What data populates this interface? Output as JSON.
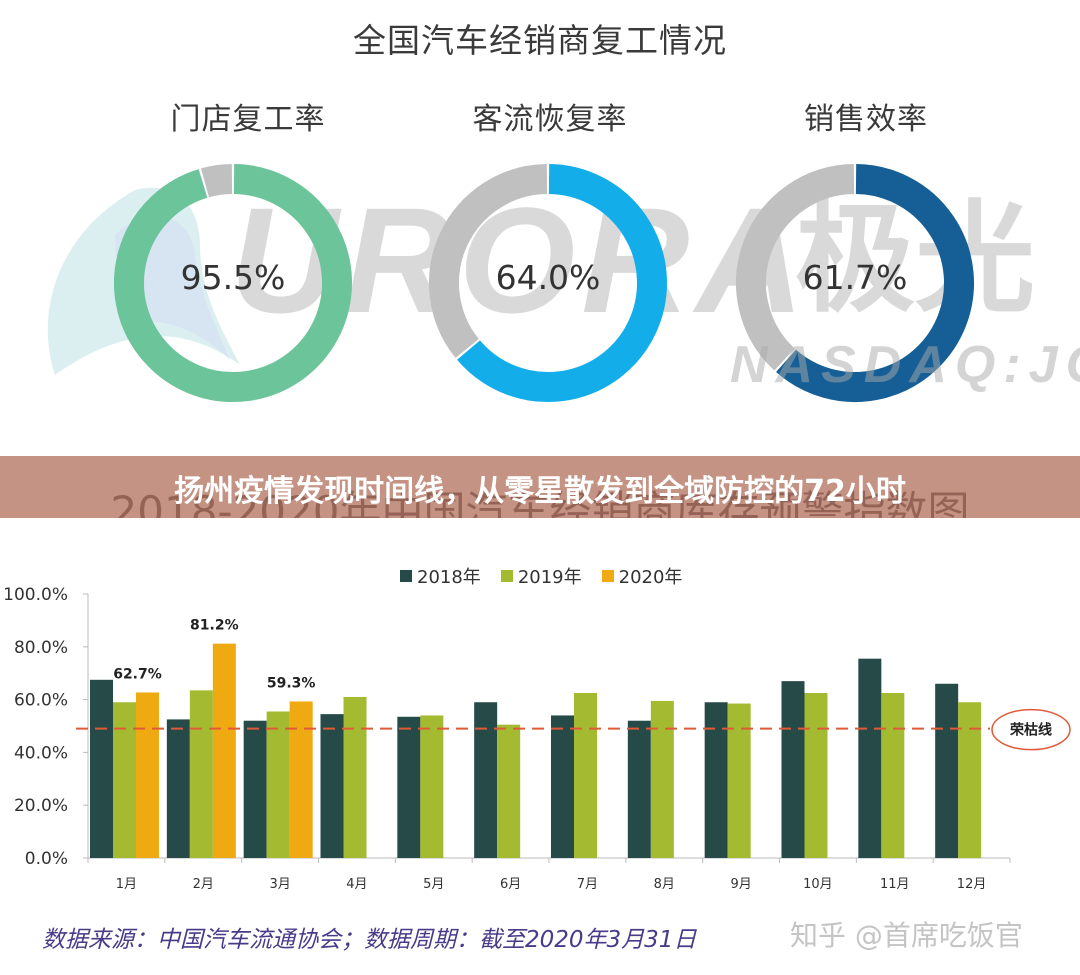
{
  "header": {
    "title": "全国汽车经销商复工情况"
  },
  "donuts": [
    {
      "title": "门店复工率",
      "value_label": "95.5%",
      "value": 95.5,
      "color": "#6cc49a",
      "rest_color": "#c0c0c0"
    },
    {
      "title": "客流恢复率",
      "value_label": "64.0%",
      "value": 64.0,
      "color": "#13aeea",
      "rest_color": "#c0c0c0"
    },
    {
      "title": "销售效率",
      "value_label": "61.7%",
      "value": 61.7,
      "color": "#155f96",
      "rest_color": "#c0c0c0"
    }
  ],
  "watermark": {
    "brand_text": "URORA",
    "brand_cn": "极光",
    "ticker": "NASDAQ:JG"
  },
  "banner": {
    "headline": "扬州疫情发现时间线，从零星散发到全域防控的72小时",
    "obscured_chart_title": "2018-2020年中国汽车经销商库存预警指数图"
  },
  "chart_data": {
    "type": "bar",
    "title": "2018-2020年中国汽车经销商库存预警指数图",
    "xlabel": "",
    "ylabel": "",
    "categories": [
      "1月",
      "2月",
      "3月",
      "4月",
      "5月",
      "6月",
      "7月",
      "8月",
      "9月",
      "10月",
      "11月",
      "12月"
    ],
    "series": [
      {
        "name": "2018年",
        "color": "#264a48",
        "values": [
          67.5,
          52.5,
          52.0,
          54.5,
          53.5,
          59.0,
          54.0,
          52.0,
          59.0,
          67.0,
          75.5,
          66.0
        ]
      },
      {
        "name": "2019年",
        "color": "#a3ba31",
        "values": [
          59.0,
          63.5,
          55.5,
          61.0,
          54.0,
          50.5,
          62.5,
          59.5,
          58.5,
          62.5,
          62.5,
          59.0
        ]
      },
      {
        "name": "2020年",
        "color": "#eeaa10",
        "values": [
          62.7,
          81.2,
          59.3,
          null,
          null,
          null,
          null,
          null,
          null,
          null,
          null,
          null
        ]
      }
    ],
    "data_labels": [
      {
        "category": "1月",
        "series": "2020年",
        "text": "62.7%"
      },
      {
        "category": "2月",
        "series": "2020年",
        "text": "81.2%"
      },
      {
        "category": "3月",
        "series": "2020年",
        "text": "59.3%"
      }
    ],
    "yticks": [
      "0.0%",
      "20.0%",
      "40.0%",
      "60.0%",
      "80.0%",
      "100.0%"
    ],
    "ylim": [
      0,
      100
    ],
    "grid": false,
    "legend_position": "top",
    "reference_line": {
      "value": 49,
      "label": "荣枯线",
      "color": "#e05a3a",
      "style": "dashed"
    }
  },
  "footer": {
    "source": "数据来源：中国汽车流通协会；数据周期：截至2020年3月31日",
    "credit": "知乎 @首席吃饭官"
  }
}
